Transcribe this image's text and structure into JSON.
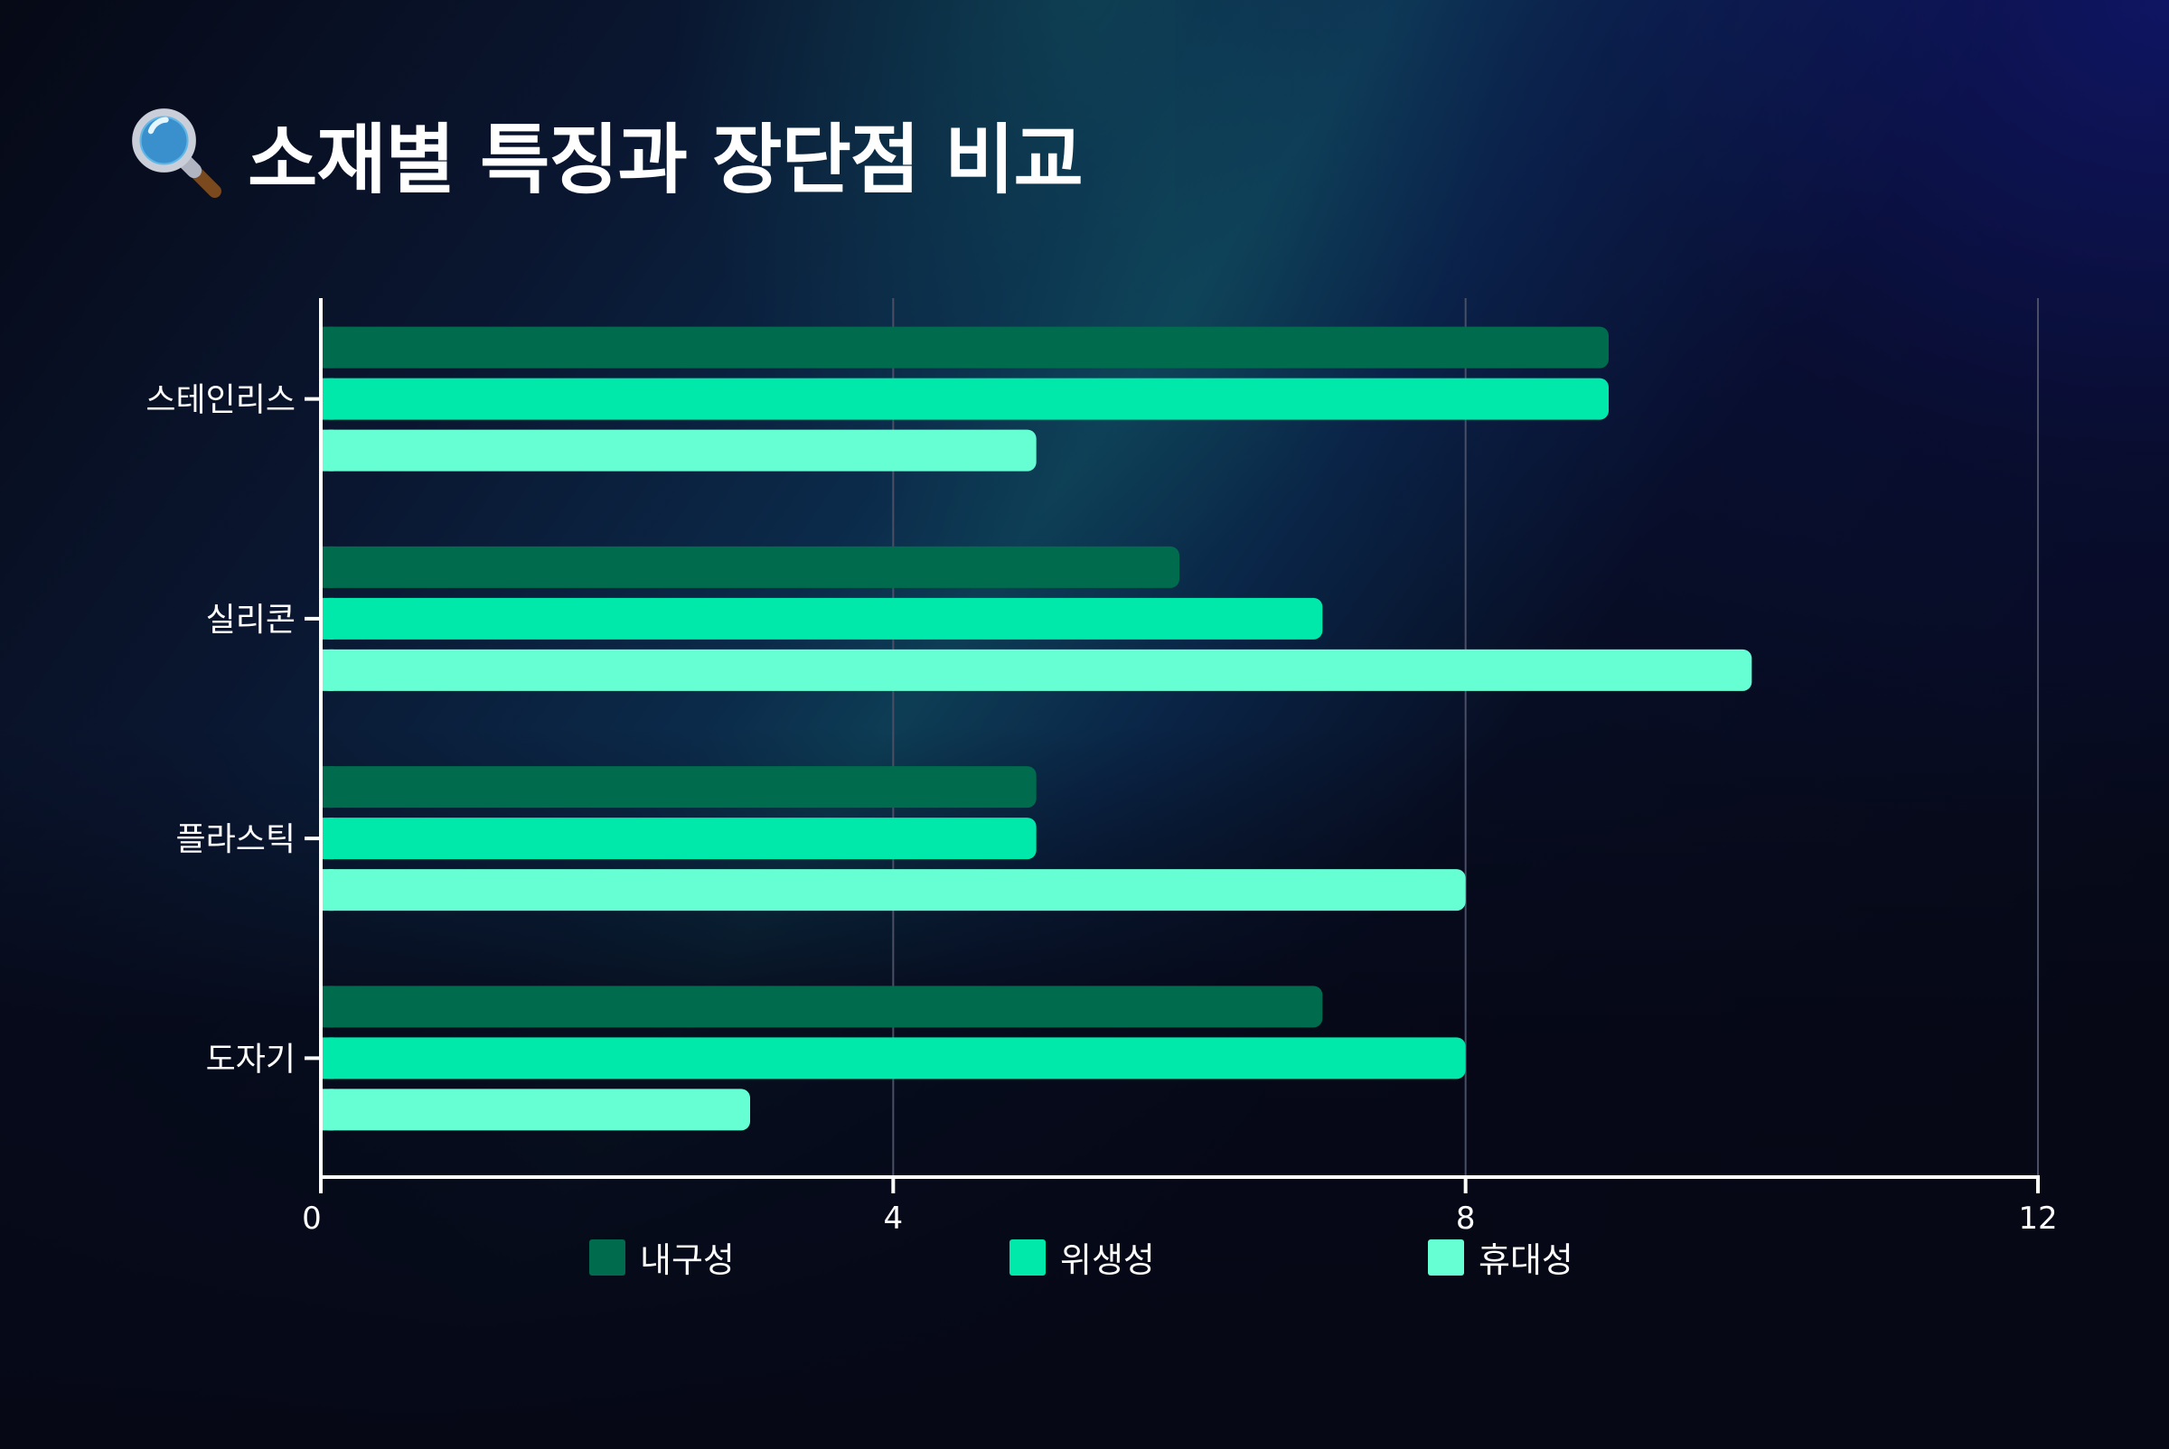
{
  "title": {
    "icon": "magnifying-glass-icon",
    "text": "소재별 특징과 장단점 비교"
  },
  "colors": {
    "series1": "#006b4d",
    "series2": "#00e8aa",
    "series3": "#66ffd4",
    "grid": "#4a4f66",
    "axis": "#ffffff"
  },
  "chart_data": {
    "type": "bar",
    "orientation": "horizontal",
    "title": "소재별 특징과 장단점 비교",
    "xlabel": "",
    "ylabel": "",
    "categories": [
      "스테인리스",
      "실리콘",
      "플라스틱",
      "도자기"
    ],
    "series": [
      {
        "name": "내구성",
        "values": [
          9,
          6,
          5,
          7
        ]
      },
      {
        "name": "위생성",
        "values": [
          9,
          7,
          5,
          8
        ]
      },
      {
        "name": "휴대성",
        "values": [
          5,
          10,
          8,
          3
        ]
      }
    ],
    "xlim": [
      0,
      12
    ],
    "xticks": [
      "0",
      "4",
      "8",
      "12"
    ],
    "grid": "vertical",
    "legend_position": "bottom"
  }
}
